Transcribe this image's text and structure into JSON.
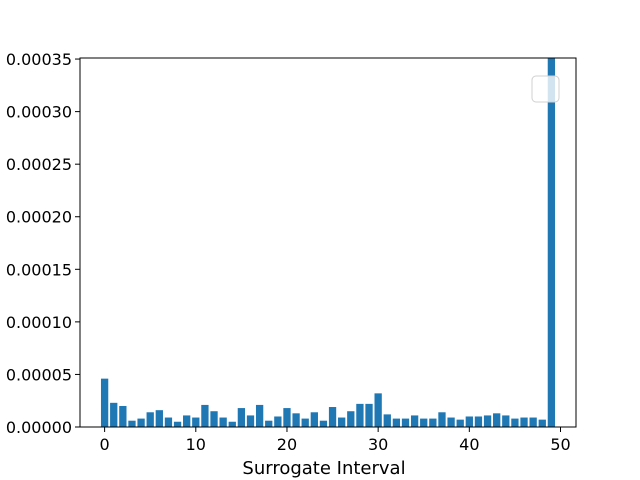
{
  "chart_data": {
    "type": "bar",
    "xlabel": "Surrogate Interval",
    "ylabel": "",
    "title": "",
    "x": [
      0,
      1,
      2,
      3,
      4,
      5,
      6,
      7,
      8,
      9,
      10,
      11,
      12,
      13,
      14,
      15,
      16,
      17,
      18,
      19,
      20,
      21,
      22,
      23,
      24,
      25,
      26,
      27,
      28,
      29,
      30,
      31,
      32,
      33,
      34,
      35,
      36,
      37,
      38,
      39,
      40,
      41,
      42,
      43,
      44,
      45,
      46,
      47,
      48,
      49
    ],
    "values": [
      4.6e-05,
      2.3e-05,
      2e-05,
      6e-06,
      8e-06,
      1.4e-05,
      1.6e-05,
      9e-06,
      5e-06,
      1.1e-05,
      9e-06,
      2.1e-05,
      1.5e-05,
      9e-06,
      5e-06,
      1.8e-05,
      1.1e-05,
      2.1e-05,
      6e-06,
      1e-05,
      1.8e-05,
      1.3e-05,
      8e-06,
      1.4e-05,
      6e-06,
      1.9e-05,
      9e-06,
      1.5e-05,
      2.2e-05,
      2.2e-05,
      3.2e-05,
      1.2e-05,
      8e-06,
      8e-06,
      1.1e-05,
      8e-06,
      8e-06,
      1.4e-05,
      9e-06,
      7e-06,
      1e-05,
      1e-05,
      1.1e-05,
      1.3e-05,
      1.1e-05,
      8e-06,
      9e-06,
      9e-06,
      7e-06,
      0.000351
    ],
    "xlim": [
      -2.7,
      51.7
    ],
    "ylim": [
      0,
      0.000351
    ],
    "xticks": [
      0,
      10,
      20,
      30,
      40,
      50
    ],
    "xtick_labels": [
      "0",
      "10",
      "20",
      "30",
      "40",
      "50"
    ],
    "yticks": [
      0,
      5e-05,
      0.0001,
      0.00015,
      0.0002,
      0.00025,
      0.0003,
      0.00035
    ],
    "ytick_labels": [
      "0.00000",
      "0.00005",
      "0.00010",
      "0.00015",
      "0.00020",
      "0.00025",
      "0.00030",
      "0.00035"
    ],
    "bar_color": "#1f77b4",
    "legend": "upper-right, empty box"
  }
}
